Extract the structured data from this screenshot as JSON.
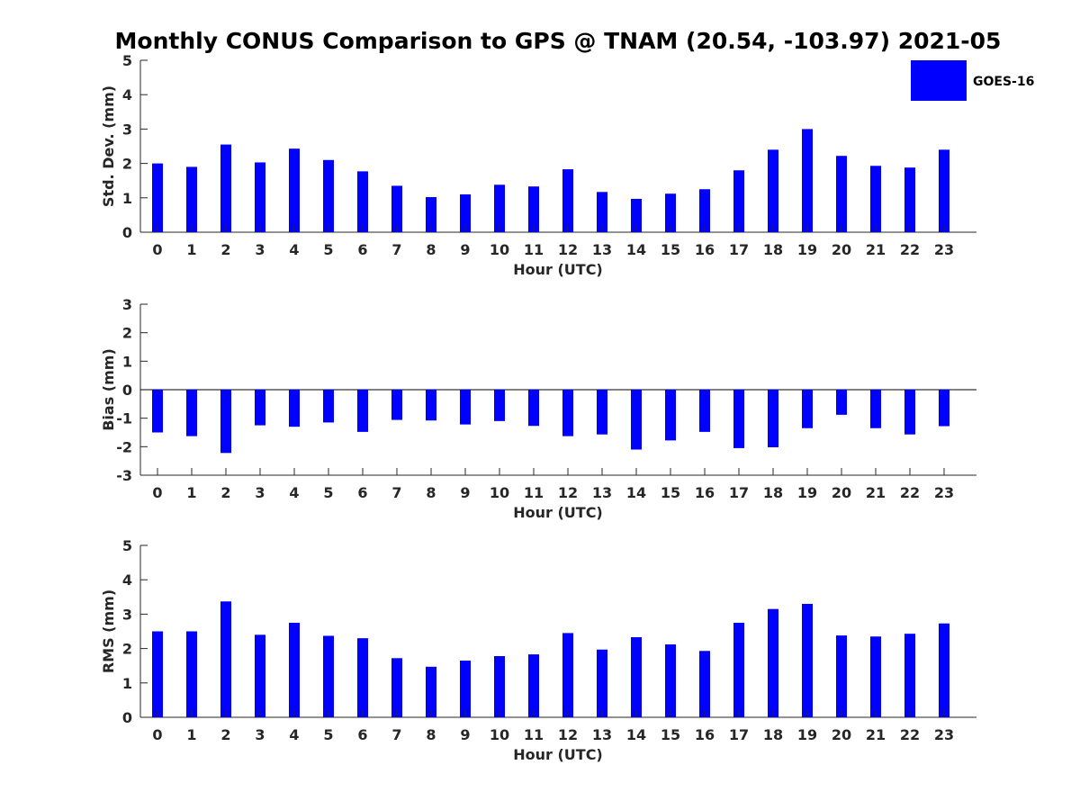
{
  "colors": {
    "bar": "#0000ff",
    "axis": "#262626",
    "background": "#ffffff"
  },
  "chart_data": [
    {
      "type": "bar",
      "title": "Monthly CONUS Comparison to GPS @ TNAM (20.54, -103.97) 2021-05",
      "xlabel": "Hour (UTC)",
      "ylabel": "Std. Dev. (mm)",
      "ylim": [
        0,
        5
      ],
      "yticks": [
        0,
        1,
        2,
        3,
        4,
        5
      ],
      "categories": [
        "0",
        "1",
        "2",
        "3",
        "4",
        "5",
        "6",
        "7",
        "8",
        "9",
        "10",
        "11",
        "12",
        "13",
        "14",
        "15",
        "16",
        "17",
        "18",
        "19",
        "20",
        "21",
        "22",
        "23"
      ],
      "legend": {
        "position": "top-right",
        "entries": [
          "GOES-16"
        ]
      },
      "series": [
        {
          "name": "GOES-16",
          "color": "#0000ff",
          "values": [
            2.0,
            1.9,
            2.55,
            2.03,
            2.43,
            2.1,
            1.77,
            1.35,
            1.02,
            1.1,
            1.38,
            1.33,
            1.83,
            1.17,
            0.97,
            1.12,
            1.25,
            1.8,
            2.4,
            3.0,
            2.22,
            1.93,
            1.88,
            2.4
          ]
        }
      ]
    },
    {
      "type": "bar",
      "title": "",
      "xlabel": "Hour (UTC)",
      "ylabel": "Bias (mm)",
      "ylim": [
        -3,
        3
      ],
      "yticks": [
        -3,
        -2,
        -1,
        0,
        1,
        2,
        3
      ],
      "categories": [
        "0",
        "1",
        "2",
        "3",
        "4",
        "5",
        "6",
        "7",
        "8",
        "9",
        "10",
        "11",
        "12",
        "13",
        "14",
        "15",
        "16",
        "17",
        "18",
        "19",
        "20",
        "21",
        "22",
        "23"
      ],
      "series": [
        {
          "name": "GOES-16",
          "color": "#0000ff",
          "values": [
            -1.5,
            -1.63,
            -2.22,
            -1.25,
            -1.3,
            -1.15,
            -1.48,
            -1.06,
            -1.08,
            -1.22,
            -1.1,
            -1.27,
            -1.63,
            -1.57,
            -2.1,
            -1.78,
            -1.48,
            -2.05,
            -2.02,
            -1.35,
            -0.88,
            -1.35,
            -1.57,
            -1.28
          ]
        }
      ]
    },
    {
      "type": "bar",
      "title": "",
      "xlabel": "Hour (UTC)",
      "ylabel": "RMS (mm)",
      "ylim": [
        0,
        5
      ],
      "yticks": [
        0,
        1,
        2,
        3,
        4,
        5
      ],
      "categories": [
        "0",
        "1",
        "2",
        "3",
        "4",
        "5",
        "6",
        "7",
        "8",
        "9",
        "10",
        "11",
        "12",
        "13",
        "14",
        "15",
        "16",
        "17",
        "18",
        "19",
        "20",
        "21",
        "22",
        "23"
      ],
      "series": [
        {
          "name": "GOES-16",
          "color": "#0000ff",
          "values": [
            2.5,
            2.5,
            3.37,
            2.4,
            2.75,
            2.37,
            2.3,
            1.72,
            1.47,
            1.65,
            1.78,
            1.83,
            2.45,
            1.97,
            2.33,
            2.12,
            1.93,
            2.75,
            3.15,
            3.3,
            2.38,
            2.35,
            2.43,
            2.73
          ]
        }
      ]
    }
  ]
}
